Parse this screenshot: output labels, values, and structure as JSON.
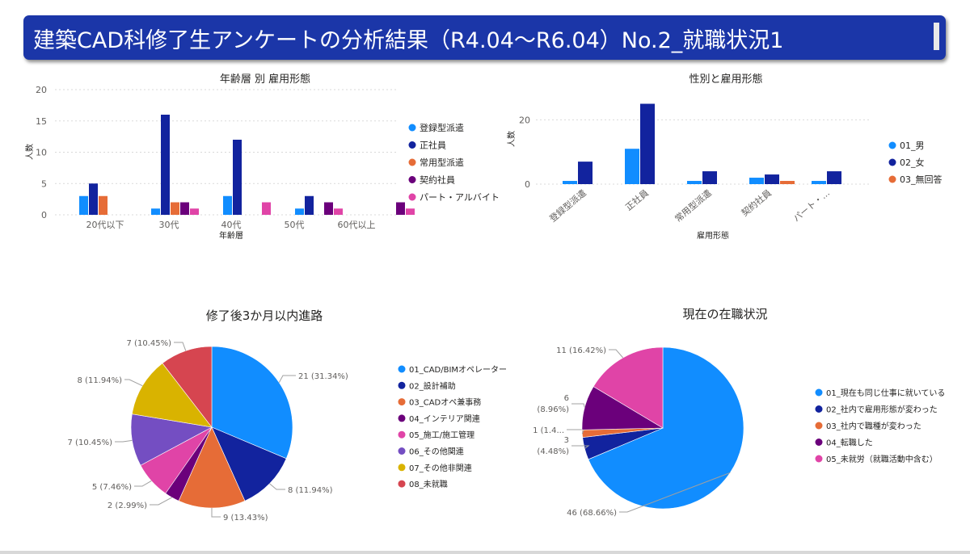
{
  "page": {
    "title": "建築CAD科修了生アンケートの分析結果（R4.04〜R6.04）No.2_就職状況1",
    "colors": {
      "header_bg": "#1b36a8",
      "header_text": "#ffffff"
    }
  },
  "chart_data": [
    {
      "type": "bar",
      "title": "年齢層 別 雇用形態",
      "xlabel": "年齢層",
      "ylabel": "人数",
      "ylim": [
        0,
        20
      ],
      "yticks": [
        "0",
        "5",
        "10",
        "15",
        "20"
      ],
      "grid": true,
      "legend_position": "right",
      "categories": [
        "20代以下",
        "30代",
        "40代",
        "50代",
        "60代以上"
      ],
      "series": [
        {
          "name": "登録型派遣",
          "color": "#118dff",
          "values": [
            3,
            1,
            3,
            1,
            0
          ]
        },
        {
          "name": "正社員",
          "color": "#12239e",
          "values": [
            5,
            16,
            12,
            3,
            0
          ]
        },
        {
          "name": "常用型派遣",
          "color": "#e66c37",
          "values": [
            3,
            2,
            0,
            0,
            0
          ]
        },
        {
          "name": "契約社員",
          "color": "#6b007b",
          "values": [
            0,
            2,
            0,
            2,
            2
          ]
        },
        {
          "name": "パート・アルバイト",
          "color": "#e044a7",
          "values": [
            0,
            1,
            2,
            1,
            1
          ]
        }
      ]
    },
    {
      "type": "bar",
      "title": "性別と雇用形態",
      "xlabel": "雇用形態",
      "ylabel": "人数",
      "ylim": [
        0,
        25
      ],
      "yticks": [
        "0",
        "20"
      ],
      "grid": true,
      "legend_position": "right",
      "categories": [
        "登録型派遣",
        "正社員",
        "常用型派遣",
        "契約社員",
        "パート・..."
      ],
      "series": [
        {
          "name": "01_男",
          "color": "#118dff",
          "values": [
            1,
            11,
            1,
            2,
            1
          ]
        },
        {
          "name": "02_女",
          "color": "#12239e",
          "values": [
            7,
            25,
            4,
            3,
            4
          ]
        },
        {
          "name": "03_無回答",
          "color": "#e66c37",
          "values": [
            0,
            0,
            0,
            1,
            0
          ]
        }
      ]
    },
    {
      "type": "pie",
      "title": "修了後3か月以内進路",
      "legend_position": "right",
      "slices": [
        {
          "name": "01_CAD/BIMオペレーター",
          "value": 21,
          "label": "21 (31.34%)",
          "color": "#118dff"
        },
        {
          "name": "02_設計補助",
          "value": 8,
          "label": "8 (11.94%)",
          "color": "#12239e"
        },
        {
          "name": "03_CADオペ兼事務",
          "value": 9,
          "label": "9 (13.43%)",
          "color": "#e66c37"
        },
        {
          "name": "04_インテリア関連",
          "value": 2,
          "label": "2 (2.99%)",
          "color": "#6b007b"
        },
        {
          "name": "05_施工/施工管理",
          "value": 5,
          "label": "5 (7.46%)",
          "color": "#e044a7"
        },
        {
          "name": "06_その他関連",
          "value": 7,
          "label": "7 (10.45%)",
          "color": "#744ec2"
        },
        {
          "name": "07_その他非関連",
          "value": 8,
          "label": "8 (11.94%)",
          "color": "#d9b300"
        },
        {
          "name": "08_未就職",
          "value": 7,
          "label": "7 (10.45%)",
          "color": "#d64550"
        }
      ]
    },
    {
      "type": "pie",
      "title": "現在の在職状況",
      "legend_position": "right",
      "slices": [
        {
          "name": "01_現在も同じ仕事に就いている",
          "value": 46,
          "label": "46 (68.66%)",
          "color": "#118dff"
        },
        {
          "name": "02_社内で雇用形態が変わった",
          "value": 3,
          "label": "3 (4.48%)",
          "color": "#12239e"
        },
        {
          "name": "03_社内で職種が変わった",
          "value": 1,
          "label": "1 (1.4...",
          "color": "#e66c37"
        },
        {
          "name": "04_転職した",
          "value": 6,
          "label": "6 (8.96%)",
          "color": "#6b007b"
        },
        {
          "name": "05_未就労（就職活動中含む）",
          "value": 11,
          "label": "11 (16.42%)",
          "color": "#e044a7"
        }
      ]
    }
  ]
}
